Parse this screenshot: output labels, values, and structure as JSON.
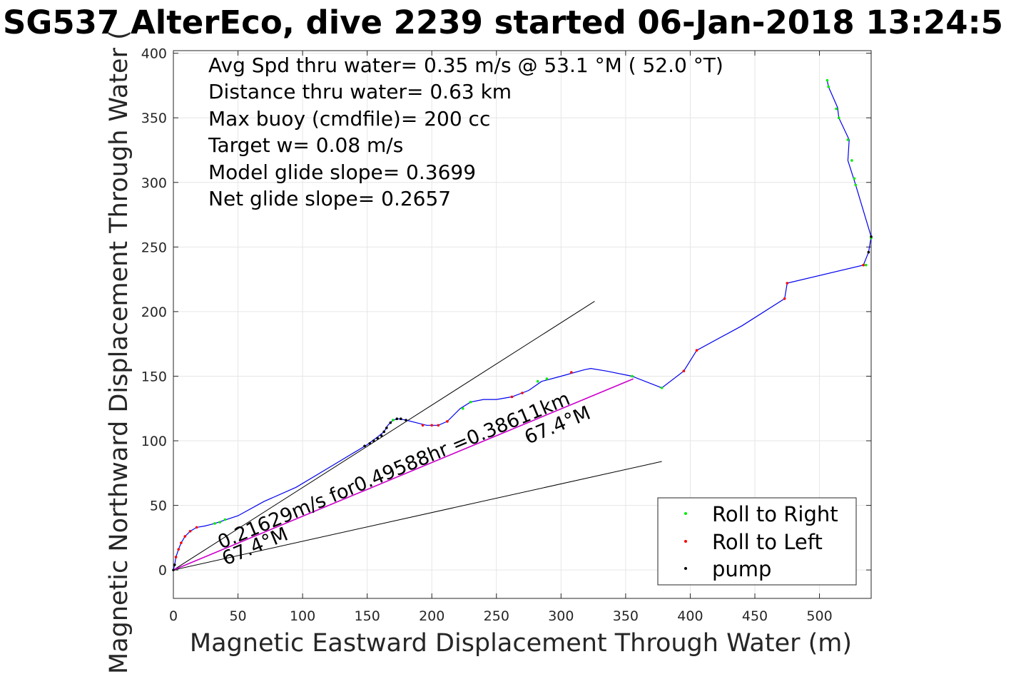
{
  "chart_data": {
    "type": "scatter",
    "title": "SG537 AlterEco, dive 2239 started 06-Jan-2018 13:24:5",
    "xlabel": "Magnetic Eastward Displacement Through Water (m)",
    "ylabel": "Magnetic Northward Displacement Through Water (",
    "xlim": [
      0,
      540
    ],
    "ylim": [
      -22,
      402
    ],
    "xticks": [
      0,
      50,
      100,
      150,
      200,
      250,
      300,
      350,
      400,
      450,
      500
    ],
    "yticks": [
      0,
      50,
      100,
      150,
      200,
      250,
      300,
      350,
      400
    ],
    "grid": true,
    "annotations": [
      "Avg Spd thru water=  0.35 m/s @  53.1 °M ( 52.0 °T)",
      "Distance thru water=  0.63 km",
      "Max buoy (cmdfile)= 200 cc",
      "Target w= 0.08 m/s",
      "Model glide slope= 0.3699",
      "Net glide slope= 0.2657"
    ],
    "vector_label": "0.21629m/s for0.49588hr =0.38611km",
    "heading_label_origin": "67.4°M",
    "heading_label_end": "67.4°M",
    "legend": {
      "position": "bottom-right",
      "entries": [
        {
          "label": "Roll to Right",
          "color": "#00ee00"
        },
        {
          "label": "Roll to Left",
          "color": "#ff0000"
        },
        {
          "label": "pump",
          "color": "#000000"
        }
      ]
    },
    "track": [
      [
        0,
        0
      ],
      [
        1,
        4
      ],
      [
        2,
        10
      ],
      [
        4,
        16
      ],
      [
        6,
        21
      ],
      [
        9,
        26
      ],
      [
        13,
        30
      ],
      [
        18,
        33
      ],
      [
        24,
        34
      ],
      [
        28,
        35
      ],
      [
        32,
        36
      ],
      [
        38,
        38
      ],
      [
        50,
        42
      ],
      [
        70,
        53
      ],
      [
        95,
        64
      ],
      [
        120,
        79
      ],
      [
        140,
        91
      ],
      [
        150,
        97
      ],
      [
        158,
        103
      ],
      [
        163,
        107
      ],
      [
        166,
        112
      ],
      [
        170,
        116
      ],
      [
        174,
        117
      ],
      [
        180,
        116
      ],
      [
        188,
        114
      ],
      [
        196,
        112
      ],
      [
        205,
        112
      ],
      [
        212,
        115
      ],
      [
        222,
        125
      ],
      [
        230,
        130
      ],
      [
        240,
        132
      ],
      [
        250,
        132
      ],
      [
        262,
        134
      ],
      [
        275,
        139
      ],
      [
        285,
        146
      ],
      [
        300,
        150
      ],
      [
        318,
        155
      ],
      [
        323,
        156
      ],
      [
        335,
        154
      ],
      [
        355,
        150
      ],
      [
        378,
        141
      ],
      [
        395,
        154
      ],
      [
        405,
        170
      ],
      [
        440,
        189
      ],
      [
        473,
        210
      ],
      [
        475,
        222
      ],
      [
        534,
        236
      ],
      [
        538,
        246
      ],
      [
        540,
        258
      ],
      [
        528,
        298
      ],
      [
        522,
        317
      ],
      [
        523,
        333
      ],
      [
        515,
        350
      ],
      [
        514,
        358
      ],
      [
        507,
        374
      ],
      [
        506,
        379
      ]
    ],
    "points": {
      "right": [
        [
          32,
          36
        ],
        [
          36,
          37
        ],
        [
          40,
          39
        ],
        [
          170,
          116
        ],
        [
          224,
          125
        ],
        [
          230,
          130
        ],
        [
          282,
          146
        ],
        [
          289,
          148
        ],
        [
          355,
          150
        ],
        [
          378,
          141
        ],
        [
          506,
          379
        ],
        [
          507,
          374
        ],
        [
          515,
          350
        ],
        [
          513,
          357
        ],
        [
          522,
          333
        ],
        [
          525,
          317
        ],
        [
          527,
          303
        ],
        [
          528,
          298
        ],
        [
          536,
          236
        ],
        [
          540,
          257
        ]
      ],
      "left": [
        [
          2,
          10
        ],
        [
          4,
          16
        ],
        [
          6,
          21
        ],
        [
          9,
          26
        ],
        [
          13,
          30
        ],
        [
          18,
          33
        ],
        [
          193,
          112
        ],
        [
          200,
          112
        ],
        [
          205,
          112
        ],
        [
          212,
          115
        ],
        [
          262,
          134
        ],
        [
          270,
          137
        ],
        [
          308,
          153
        ],
        [
          395,
          154
        ],
        [
          405,
          170
        ],
        [
          473,
          210
        ],
        [
          475,
          222
        ],
        [
          534,
          236
        ]
      ],
      "pump": [
        [
          0,
          0
        ],
        [
          1,
          4
        ],
        [
          148,
          96
        ],
        [
          152,
          98
        ],
        [
          155,
          100
        ],
        [
          158,
          102
        ],
        [
          161,
          104
        ],
        [
          163,
          107
        ],
        [
          165,
          110
        ],
        [
          168,
          114
        ],
        [
          173,
          117
        ],
        [
          176,
          117
        ],
        [
          180,
          116
        ],
        [
          538,
          246
        ],
        [
          540,
          258
        ]
      ]
    },
    "glide_vector": {
      "from": [
        0,
        0
      ],
      "to": [
        356,
        148
      ],
      "color": "#cc00cc"
    },
    "envelope_lines": [
      {
        "from": [
          0,
          0
        ],
        "to": [
          326,
          208
        ]
      },
      {
        "from": [
          0,
          0
        ],
        "to": [
          378,
          84
        ]
      }
    ]
  }
}
